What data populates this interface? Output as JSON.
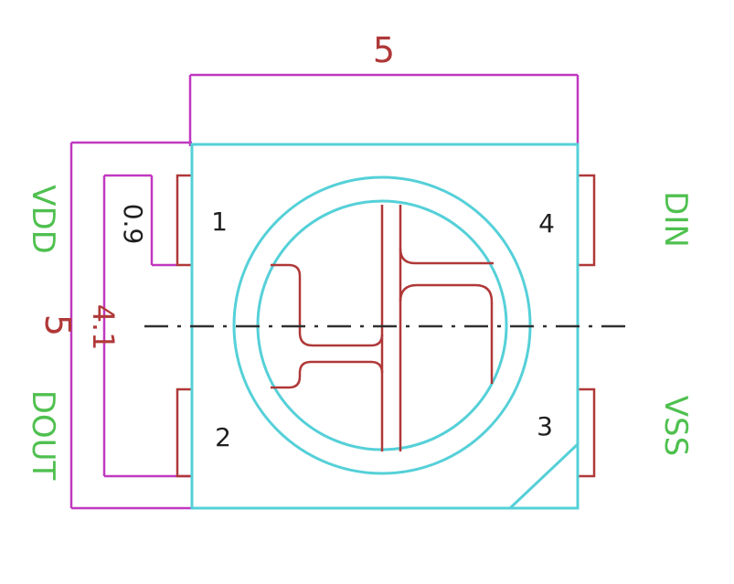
{
  "colors": {
    "dimension": "#c038c0",
    "body_outline": "#55d0d8",
    "pad": "#b03838",
    "signal_label": "#4fc04f",
    "text_dark": "#202020",
    "centerline": "#303030"
  },
  "dimensions": {
    "top_width": "5",
    "left_height": "5",
    "inner_height": "4.1",
    "pad_height": "0.9"
  },
  "pins": {
    "p1": "1",
    "p2": "2",
    "p3": "3",
    "p4": "4"
  },
  "signals": {
    "left_top": "VDD",
    "left_bottom": "DOUT",
    "right_top": "DIN",
    "right_bottom": "VSS"
  }
}
